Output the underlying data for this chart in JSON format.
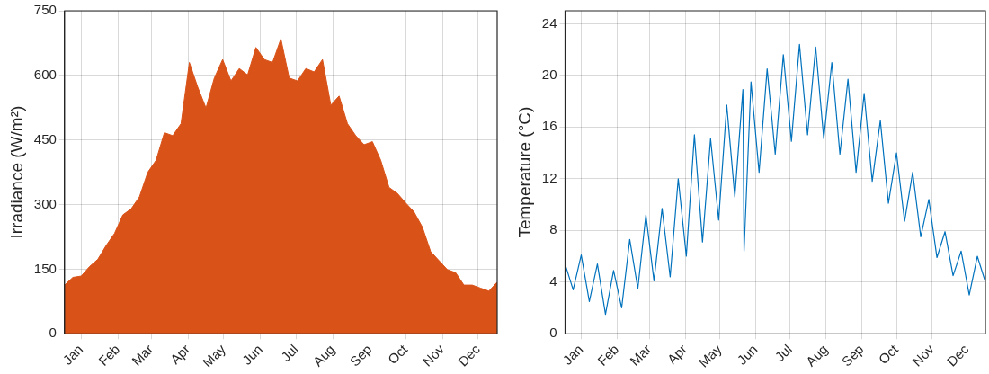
{
  "chart_data": [
    {
      "type": "area",
      "ylabel": "Irradiance (W/m²)",
      "grid": true,
      "x": [
        "--01-01",
        "--01-08",
        "--01-15",
        "--01-22",
        "--01-29",
        "--02-05",
        "--02-12",
        "--02-19",
        "--02-26",
        "--03-05",
        "--03-12",
        "--03-19",
        "--03-26",
        "--04-02",
        "--04-09",
        "--04-16",
        "--04-23",
        "--04-30",
        "--05-07",
        "--05-14",
        "--05-21",
        "--05-28",
        "--06-04",
        "--06-11",
        "--06-18",
        "--06-25",
        "--07-02",
        "--07-09",
        "--07-16",
        "--07-23",
        "--07-30",
        "--08-06",
        "--08-13",
        "--08-20",
        "--08-27",
        "--09-03",
        "--09-10",
        "--09-17",
        "--09-24",
        "--10-01",
        "--10-08",
        "--10-15",
        "--10-22",
        "--10-29",
        "--11-05",
        "--11-12",
        "--11-19",
        "--11-26",
        "--12-03",
        "--12-10",
        "--12-17",
        "--12-24",
        "--12-31"
      ],
      "series": [
        {
          "color": "#d95319",
          "values": [
            113,
            131,
            134,
            156,
            173,
            205,
            233,
            276,
            290,
            318,
            375,
            403,
            467,
            460,
            488,
            630,
            573,
            524,
            594,
            637,
            587,
            616,
            601,
            665,
            637,
            630,
            685,
            594,
            587,
            616,
            608,
            637,
            531,
            552,
            488,
            460,
            439,
            446,
            403,
            340,
            326,
            304,
            283,
            248,
            191,
            170,
            149,
            142,
            113,
            113,
            106,
            99,
            120
          ]
        }
      ],
      "xlim": [
        "--01-01",
        "--12-31"
      ],
      "xticks": [
        {
          "value": "--01-15",
          "label": "Jan"
        },
        {
          "value": "--02-15",
          "label": "Feb"
        },
        {
          "value": "--03-15",
          "label": "Mar"
        },
        {
          "value": "--04-15",
          "label": "Apr"
        },
        {
          "value": "--05-15",
          "label": "May"
        },
        {
          "value": "--06-15",
          "label": "Jun"
        },
        {
          "value": "--07-15",
          "label": "Jul"
        },
        {
          "value": "--08-15",
          "label": "Aug"
        },
        {
          "value": "--09-15",
          "label": "Sep"
        },
        {
          "value": "--10-15",
          "label": "Oct"
        },
        {
          "value": "--11-15",
          "label": "Nov"
        },
        {
          "value": "--12-15",
          "label": "Dec"
        }
      ],
      "ylim": [
        0,
        750
      ],
      "yticks": [
        0,
        150,
        300,
        450,
        600,
        750
      ]
    },
    {
      "type": "line",
      "ylabel": "Temperature (°C)",
      "grid": true,
      "x": [
        "--01-01",
        "--01-08",
        "--01-15",
        "--01-22",
        "--01-29",
        "--02-05",
        "--02-12",
        "--02-19",
        "--02-26",
        "--03-05",
        "--03-12",
        "--03-19",
        "--03-26",
        "--04-02",
        "--04-09",
        "--04-16",
        "--04-23",
        "--04-30",
        "--05-07",
        "--05-14",
        "--05-21",
        "--05-28",
        "--06-04",
        "--06-05",
        "--06-11",
        "--06-18",
        "--06-25",
        "--07-02",
        "--07-09",
        "--07-16",
        "--07-23",
        "--07-30",
        "--08-06",
        "--08-13",
        "--08-20",
        "--08-27",
        "--09-03",
        "--09-10",
        "--09-17",
        "--09-24",
        "--10-01",
        "--10-08",
        "--10-15",
        "--10-22",
        "--10-29",
        "--11-05",
        "--11-12",
        "--11-19",
        "--11-26",
        "--12-03",
        "--12-10",
        "--12-17",
        "--12-24",
        "--12-31"
      ],
      "series": [
        {
          "color": "#0072bd",
          "values": [
            5.4,
            3.4,
            6.1,
            2.5,
            5.4,
            1.5,
            4.9,
            2.0,
            7.3,
            3.5,
            9.2,
            4.1,
            9.7,
            4.4,
            12,
            6.0,
            15.4,
            7.1,
            15.1,
            8.8,
            17.7,
            10.6,
            18.9,
            6.4,
            19.5,
            12.5,
            20.5,
            13.9,
            21.6,
            14.9,
            22.4,
            15.4,
            22.2,
            15.1,
            21,
            13.9,
            19.7,
            12.5,
            18.6,
            11.8,
            16.5,
            10.1,
            14,
            8.7,
            12.5,
            7.5,
            10.4,
            5.9,
            7.9,
            4.5,
            6.4,
            3.0,
            6.0,
            4.0
          ]
        }
      ],
      "xlim": [
        "--01-01",
        "--12-31"
      ],
      "xticks": [
        {
          "value": "--01-15",
          "label": "Jan"
        },
        {
          "value": "--02-15",
          "label": "Feb"
        },
        {
          "value": "--03-15",
          "label": "Mar"
        },
        {
          "value": "--04-15",
          "label": "Apr"
        },
        {
          "value": "--05-15",
          "label": "May"
        },
        {
          "value": "--06-15",
          "label": "Jun"
        },
        {
          "value": "--07-15",
          "label": "Jul"
        },
        {
          "value": "--08-15",
          "label": "Aug"
        },
        {
          "value": "--09-15",
          "label": "Sep"
        },
        {
          "value": "--10-15",
          "label": "Oct"
        },
        {
          "value": "--11-15",
          "label": "Nov"
        },
        {
          "value": "--12-15",
          "label": "Dec"
        }
      ],
      "ylim": [
        0,
        25
      ],
      "yticks": [
        0,
        4,
        8,
        12,
        16,
        20,
        24
      ]
    }
  ]
}
